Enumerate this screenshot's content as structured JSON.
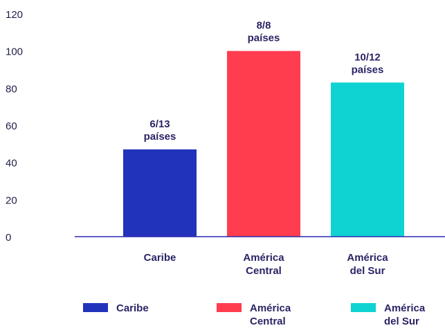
{
  "chart_data": {
    "type": "bar",
    "title": "",
    "xlabel": "",
    "ylabel": "",
    "ylim": [
      0,
      120
    ],
    "yticks": [
      0,
      20,
      40,
      60,
      80,
      100,
      120
    ],
    "grid": false,
    "legend_position": "bottom",
    "categories": [
      {
        "label_lines": [
          "Caribe"
        ],
        "value": 47,
        "data_label_lines": [
          "6/13",
          "países"
        ],
        "color": "#2233bb"
      },
      {
        "label_lines": [
          "América",
          "Central"
        ],
        "value": 100,
        "data_label_lines": [
          "8/8",
          "países"
        ],
        "color": "#ff3d4f"
      },
      {
        "label_lines": [
          "América",
          "del Sur"
        ],
        "value": 83,
        "data_label_lines": [
          "10/12",
          "países"
        ],
        "color": "#0fd3d3"
      }
    ],
    "legend": [
      {
        "label_lines": [
          "Caribe"
        ],
        "color": "#2233bb"
      },
      {
        "label_lines": [
          "América",
          "Central"
        ],
        "color": "#ff3d4f"
      },
      {
        "label_lines": [
          "América",
          "del Sur"
        ],
        "color": "#0fd3d3"
      }
    ],
    "axis_color": "#2a2ab0"
  }
}
